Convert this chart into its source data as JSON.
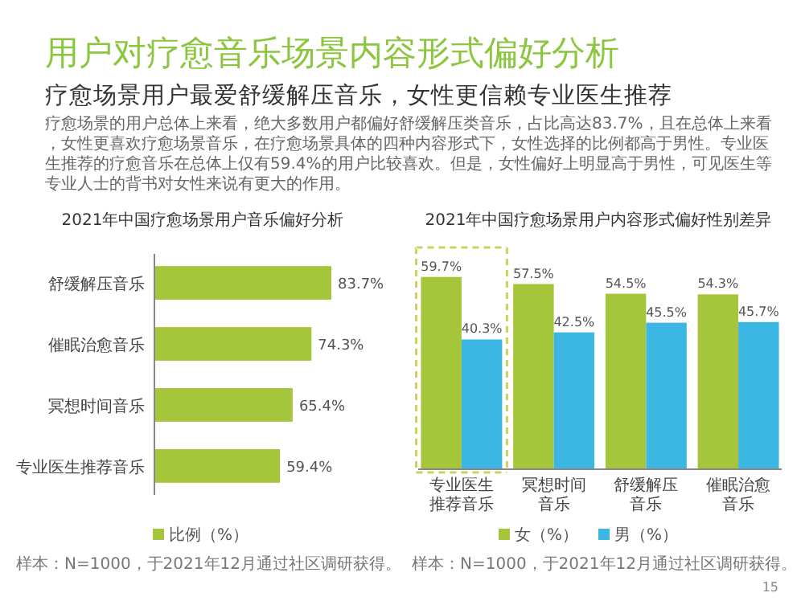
{
  "chart_data": [
    {
      "type": "other",
      "title": "用户对疗愈音乐场景内容形式偏好分析",
      "subtitle": "疗愈场景用户最爱舒缓解压音乐，女性更信赖专业医生推荐",
      "annotations": [
        "疗愈场景的用户总体上来看，绝大多数用户都偏好舒缓解压类音乐，占比高达83.7%，且在总体上来看，女性更喜欢疗愈场景音乐，在疗愈场景具体的四种内容形式下，女性选择的比例都高于男性。专业医生推荐的疗愈音乐在总体上仅有59.4%的用户比较喜欢。但是，女性偏好上明显高于男性，可见医生等专业人士的背书对女性来说有更大的作用。",
        "15"
      ]
    },
    {
      "type": "bar",
      "orientation": "horizontal",
      "title": "2021年中国疗愈场景用户音乐偏好分析",
      "categories": [
        "舒缓解压音乐",
        "催眠治愈音乐",
        "冥想时间音乐",
        "专业医生推荐音乐"
      ],
      "series": [
        {
          "name": "比例（%）",
          "color": "#a5c63b",
          "values": [
            83.7,
            74.3,
            65.4,
            59.4
          ],
          "value_labels": [
            "83.7%",
            "74.3%",
            "65.4%",
            "59.4%"
          ]
        }
      ],
      "legend": "bottom",
      "annotations": [
        "样本：N=1000，于2021年12月通过社区调研获得。"
      ]
    },
    {
      "type": "bar",
      "title": "2021年中国疗愈场景用户内容形式偏好性别差异",
      "categories": [
        "专业医生推荐音乐",
        "冥想时间音乐",
        "舒缓解压音乐",
        "催眠治愈音乐"
      ],
      "series": [
        {
          "name": "女（%）",
          "color": "#a5c63b",
          "values": [
            59.7,
            57.5,
            54.5,
            54.3
          ],
          "value_labels": [
            "59.7%",
            "57.5%",
            "54.5%",
            "54.3%"
          ]
        },
        {
          "name": "男（%）",
          "color": "#3cb6e3",
          "values": [
            40.3,
            42.5,
            45.5,
            45.7
          ],
          "value_labels": [
            "40.3%",
            "42.5%",
            "45.5%",
            "45.7%"
          ]
        }
      ],
      "legend": "bottom",
      "annotations": [
        "样本：N=1000，于2021年12月通过社区调研获得。"
      ]
    }
  ]
}
